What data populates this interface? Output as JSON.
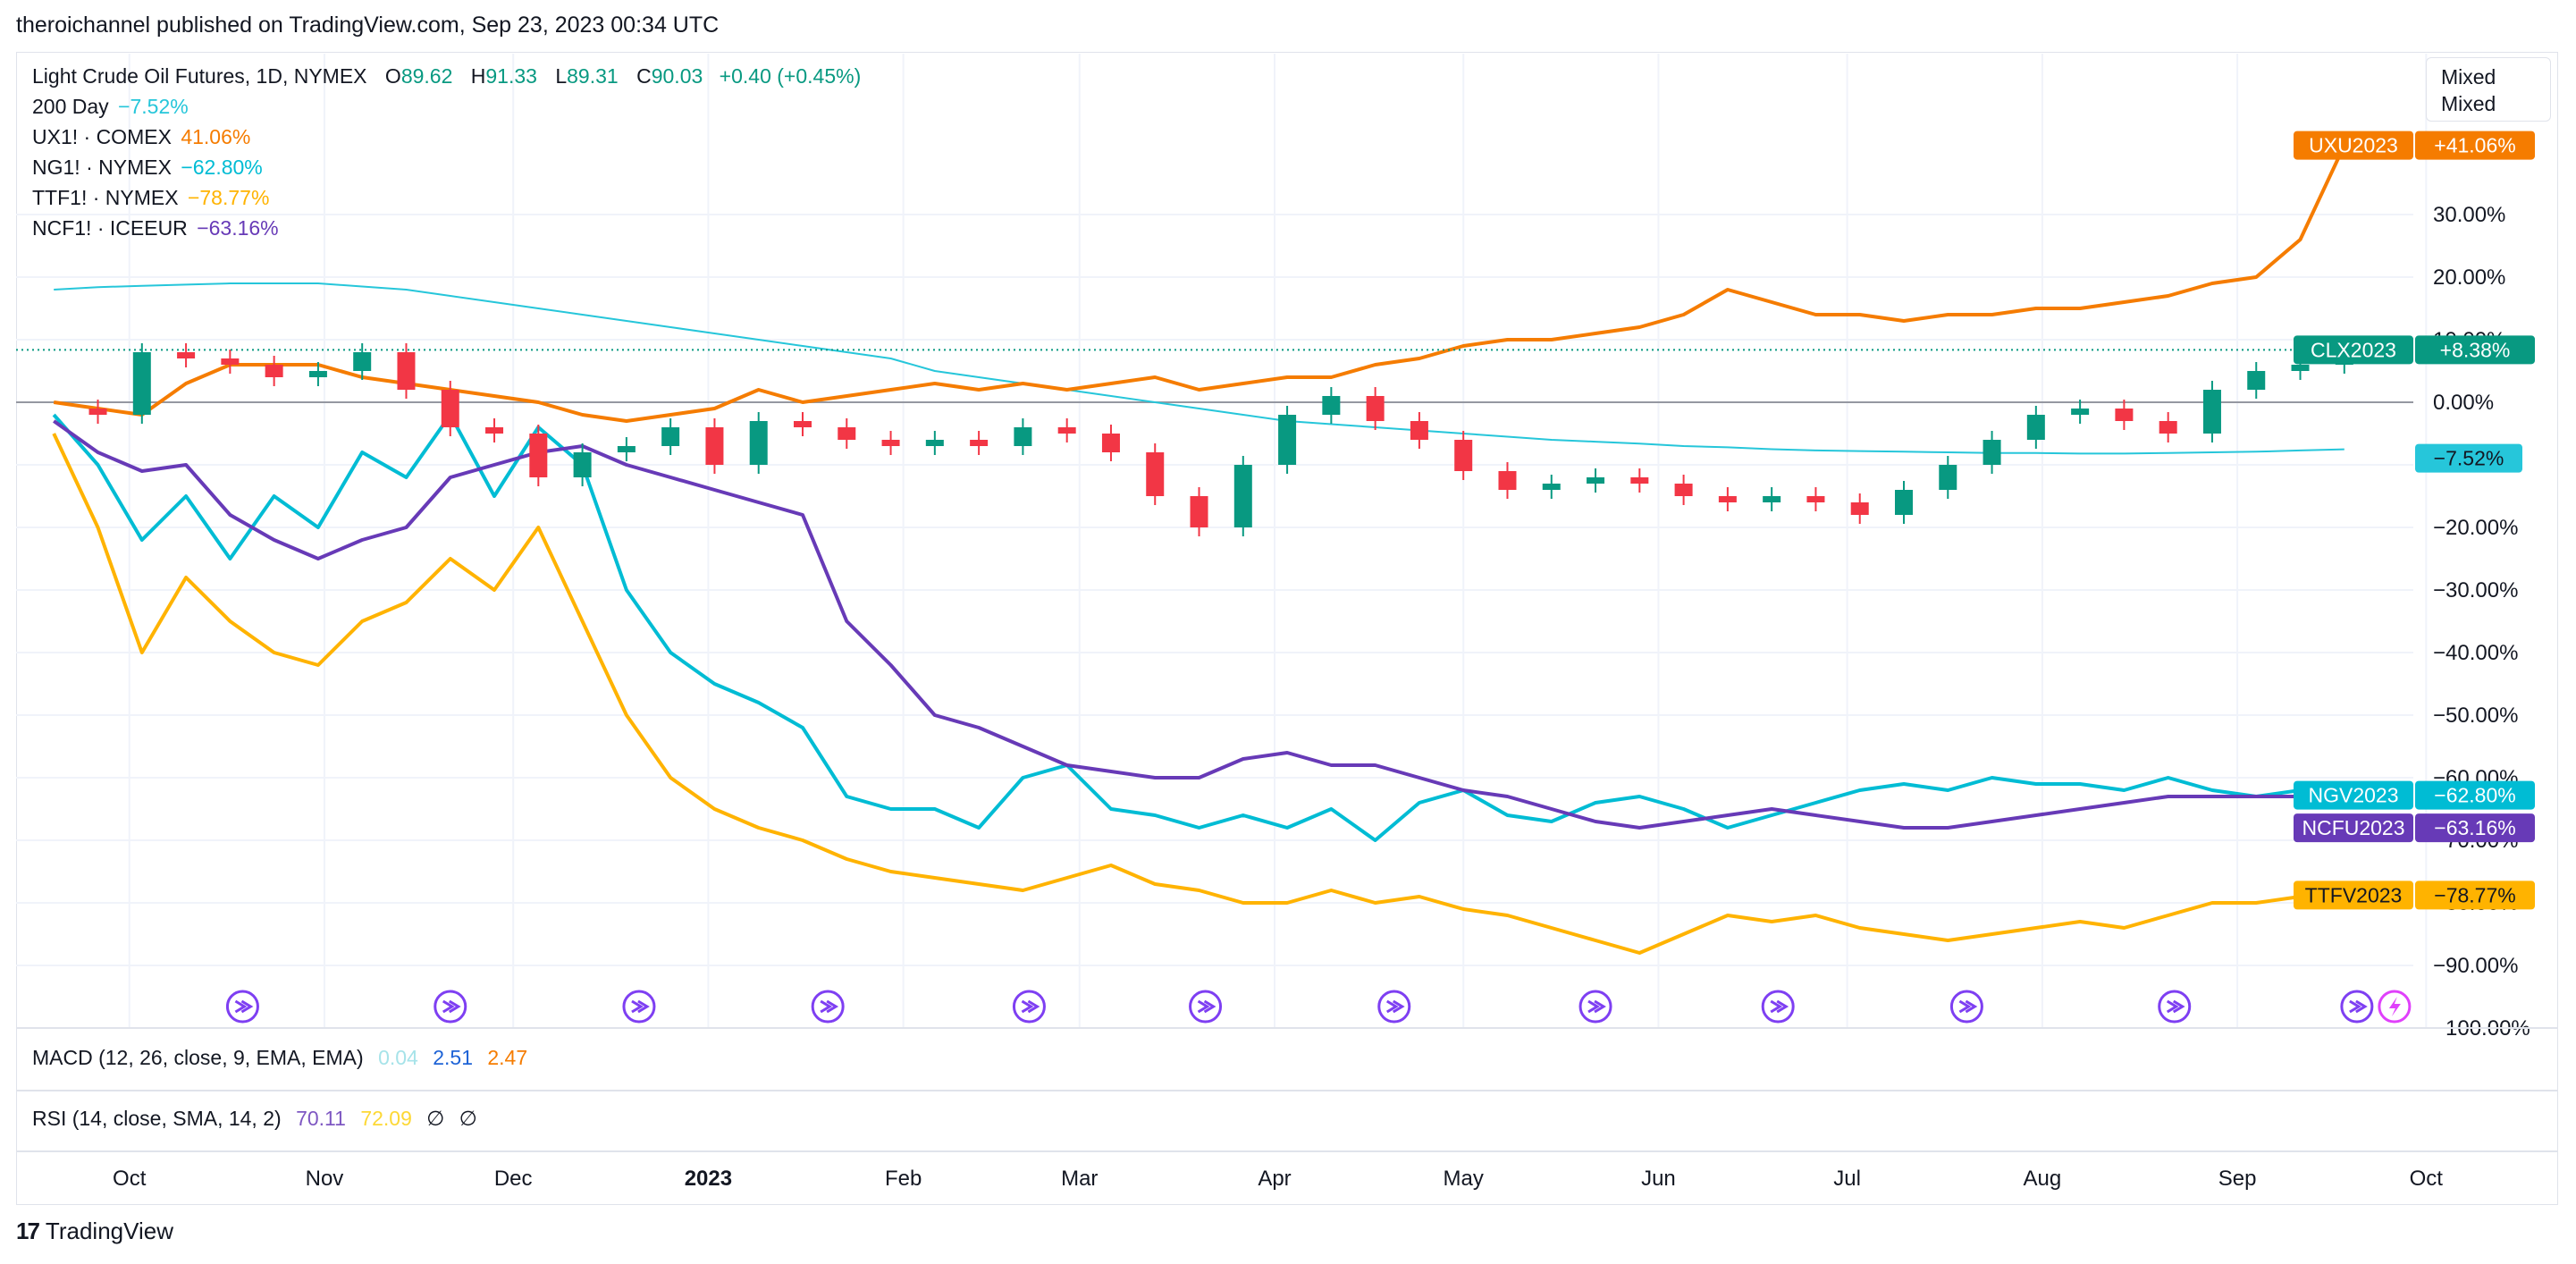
{
  "header": {
    "text": "theroichannel published on TradingView.com, Sep 23, 2023 00:34 UTC"
  },
  "legend": {
    "main": {
      "symbol": "Light Crude Oil Futures, 1D, NYMEX",
      "o_label": "O",
      "o_value": "89.62",
      "h_label": "H",
      "h_value": "91.33",
      "l_label": "L",
      "l_value": "89.31",
      "c_label": "C",
      "c_value": "90.03",
      "change": "+0.40 (+0.45%)"
    },
    "rows": [
      {
        "name": "200 Day",
        "value": "−7.52%",
        "color": "#26c6da"
      },
      {
        "name": "UX1! · COMEX",
        "value": "41.06%",
        "color": "#f57c00"
      },
      {
        "name": "NG1! · NYMEX",
        "value": "−62.80%",
        "color": "#00bcd4"
      },
      {
        "name": "TTF1! · NYMEX",
        "value": "−78.77%",
        "color": "#ffb300"
      },
      {
        "name": "NCF1! · ICEEUR",
        "value": "−63.16%",
        "color": "#673ab7"
      }
    ]
  },
  "mode_box": {
    "line1": "Mixed",
    "line2": "Mixed"
  },
  "macd": {
    "label": "MACD (12, 26, close, 9, EMA, EMA)",
    "v1": "0.04",
    "v2": "2.51",
    "v3": "2.47",
    "c1": "#a6e3e9",
    "c2": "#1e63d6",
    "c3": "#f57c00"
  },
  "rsi": {
    "label": "RSI (14, close, SMA, 14, 2)",
    "v1": "70.11",
    "v2": "72.09",
    "v3": "∅",
    "v4": "∅",
    "c1": "#7e57c2",
    "c2": "#fdd835"
  },
  "footer": {
    "brand": "TradingView",
    "mark": "17"
  },
  "chart_data": {
    "type": "line",
    "title": "Light Crude Oil Futures, 1D, NYMEX",
    "x_ticks": [
      "Oct",
      "Nov",
      "Dec",
      "2023",
      "Feb",
      "Mar",
      "Apr",
      "May",
      "Jun",
      "Jul",
      "Aug",
      "Sep",
      "Oct"
    ],
    "y_ticks": [
      "30.00%",
      "20.00%",
      "10.00%",
      "0.00%",
      "−10.00%",
      "−20.00%",
      "−30.00%",
      "−40.00%",
      "−50.00%",
      "−60.00%",
      "−70.00%",
      "−80.00%",
      "−90.00%",
      "−100.00%"
    ],
    "ylim": [
      -100,
      42
    ],
    "x": [
      "2022-09-19",
      "2022-09-26",
      "2022-10-03",
      "2022-10-10",
      "2022-10-17",
      "2022-10-24",
      "2022-10-31",
      "2022-11-07",
      "2022-11-14",
      "2022-11-21",
      "2022-11-28",
      "2022-12-05",
      "2022-12-12",
      "2022-12-19",
      "2022-12-26",
      "2023-01-02",
      "2023-01-09",
      "2023-01-16",
      "2023-01-23",
      "2023-01-30",
      "2023-02-06",
      "2023-02-13",
      "2023-02-20",
      "2023-02-27",
      "2023-03-06",
      "2023-03-13",
      "2023-03-20",
      "2023-03-27",
      "2023-04-03",
      "2023-04-10",
      "2023-04-17",
      "2023-04-24",
      "2023-05-01",
      "2023-05-08",
      "2023-05-15",
      "2023-05-22",
      "2023-05-29",
      "2023-06-05",
      "2023-06-12",
      "2023-06-19",
      "2023-06-26",
      "2023-07-03",
      "2023-07-10",
      "2023-07-17",
      "2023-07-24",
      "2023-07-31",
      "2023-08-07",
      "2023-08-14",
      "2023-08-21",
      "2023-08-28",
      "2023-09-04",
      "2023-09-11",
      "2023-09-18"
    ],
    "series": [
      {
        "name": "CLX2023",
        "color": "#089981",
        "badge": "+8.38%",
        "values": [
          -1,
          -2,
          8,
          7,
          6,
          4,
          5,
          8,
          2,
          -4,
          -5,
          -12,
          -8,
          -7,
          -4,
          -10,
          -3,
          -4,
          -6,
          -7,
          -6,
          -7,
          -4,
          -5,
          -8,
          -15,
          -20,
          -10,
          -2,
          1,
          -3,
          -6,
          -11,
          -14,
          -13,
          -12,
          -13,
          -15,
          -16,
          -15,
          -16,
          -18,
          -14,
          -10,
          -6,
          -2,
          -1,
          -3,
          -5,
          2,
          5,
          6,
          8.38
        ]
      },
      {
        "name": "UXU2023",
        "color": "#f57c00",
        "badge": "+41.06%",
        "values": [
          0,
          -1,
          -2,
          3,
          6,
          6,
          6,
          4,
          3,
          2,
          1,
          0,
          -2,
          -3,
          -2,
          -1,
          2,
          0,
          1,
          2,
          3,
          2,
          3,
          2,
          3,
          4,
          2,
          3,
          4,
          4,
          6,
          7,
          9,
          10,
          10,
          11,
          12,
          14,
          18,
          16,
          14,
          14,
          13,
          14,
          14,
          15,
          15,
          16,
          17,
          19,
          20,
          26,
          41.06
        ]
      },
      {
        "name": "NGV2023",
        "color": "#00bcd4",
        "badge": "−62.80%",
        "values": [
          -2,
          -10,
          -22,
          -15,
          -25,
          -15,
          -20,
          -8,
          -12,
          -2,
          -15,
          -4,
          -10,
          -30,
          -40,
          -45,
          -48,
          -52,
          -63,
          -65,
          -65,
          -68,
          -60,
          -58,
          -65,
          -66,
          -68,
          -66,
          -68,
          -65,
          -70,
          -64,
          -62,
          -66,
          -67,
          -64,
          -63,
          -65,
          -68,
          -66,
          -64,
          -62,
          -61,
          -62,
          -60,
          -61,
          -61,
          -62,
          -60,
          -62,
          -63,
          -62,
          -62.8
        ]
      },
      {
        "name": "TTFV2023",
        "color": "#ffb300",
        "badge": "−78.77%",
        "values": [
          -5,
          -20,
          -40,
          -28,
          -35,
          -40,
          -42,
          -35,
          -32,
          -25,
          -30,
          -20,
          -35,
          -50,
          -60,
          -65,
          -68,
          -70,
          -73,
          -75,
          -76,
          -77,
          -78,
          -76,
          -74,
          -77,
          -78,
          -80,
          -80,
          -78,
          -80,
          -79,
          -81,
          -82,
          -84,
          -86,
          -88,
          -85,
          -82,
          -83,
          -82,
          -84,
          -85,
          -86,
          -85,
          -84,
          -83,
          -84,
          -82,
          -80,
          -80,
          -79,
          -78.77
        ]
      },
      {
        "name": "NCFU2023",
        "color": "#673ab7",
        "badge": "−63.16%",
        "values": [
          -3,
          -8,
          -11,
          -10,
          -18,
          -22,
          -25,
          -22,
          -20,
          -12,
          -10,
          -8,
          -7,
          -10,
          -12,
          -14,
          -16,
          -18,
          -35,
          -42,
          -50,
          -52,
          -55,
          -58,
          -59,
          -60,
          -60,
          -57,
          -56,
          -58,
          -58,
          -60,
          -62,
          -63,
          -65,
          -67,
          -68,
          -67,
          -66,
          -65,
          -66,
          -67,
          -68,
          -68,
          -67,
          -66,
          -65,
          -64,
          -63,
          -63,
          -63,
          -63,
          -63.16
        ]
      },
      {
        "name": "200 Day",
        "color": "#26c6da",
        "badge": "−7.52%",
        "values": [
          18,
          18.4,
          18.6,
          18.8,
          19,
          19,
          19,
          18.5,
          18,
          17,
          16,
          15,
          14,
          13,
          12,
          11,
          10,
          9,
          8,
          7,
          5,
          4,
          3,
          2,
          1,
          0,
          -1,
          -2,
          -3,
          -3.5,
          -4,
          -4.5,
          -5,
          -5.5,
          -6,
          -6.3,
          -6.6,
          -7,
          -7.2,
          -7.5,
          -7.7,
          -7.8,
          -7.9,
          -8,
          -8.1,
          -8.1,
          -8.2,
          -8.2,
          -8.1,
          -8,
          -7.9,
          -7.7,
          -7.52
        ]
      }
    ],
    "series_legend": "top-left",
    "grid": true
  }
}
